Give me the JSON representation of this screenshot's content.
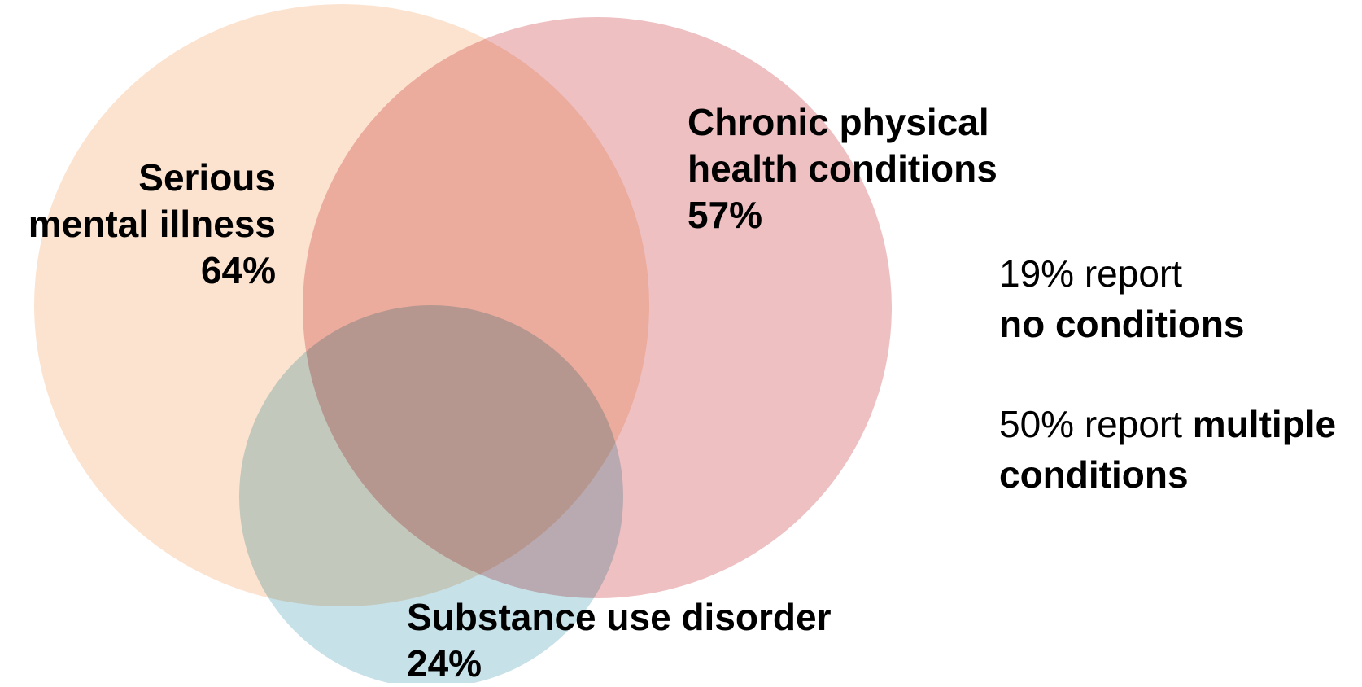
{
  "sets": [
    {
      "id": "smi",
      "label_line1": "Serious",
      "label_line2": "mental illness",
      "percent": "64%",
      "value": 64,
      "color": "#FCE3CF"
    },
    {
      "id": "cph",
      "label_line1": "Chronic physical",
      "label_line2": "health conditions",
      "percent": "57%",
      "value": 57,
      "color": "#EEC0C2"
    },
    {
      "id": "sud",
      "label_line1": "Substance use disorder",
      "percent": "24%",
      "value": 24,
      "color": "#C6E1E8"
    }
  ],
  "notes": {
    "none": {
      "line1": "19% report",
      "line2": "no conditions"
    },
    "multiple": {
      "line1_prefix": "50% report ",
      "line1_emphasis": "multiple",
      "line2": "conditions"
    }
  }
}
